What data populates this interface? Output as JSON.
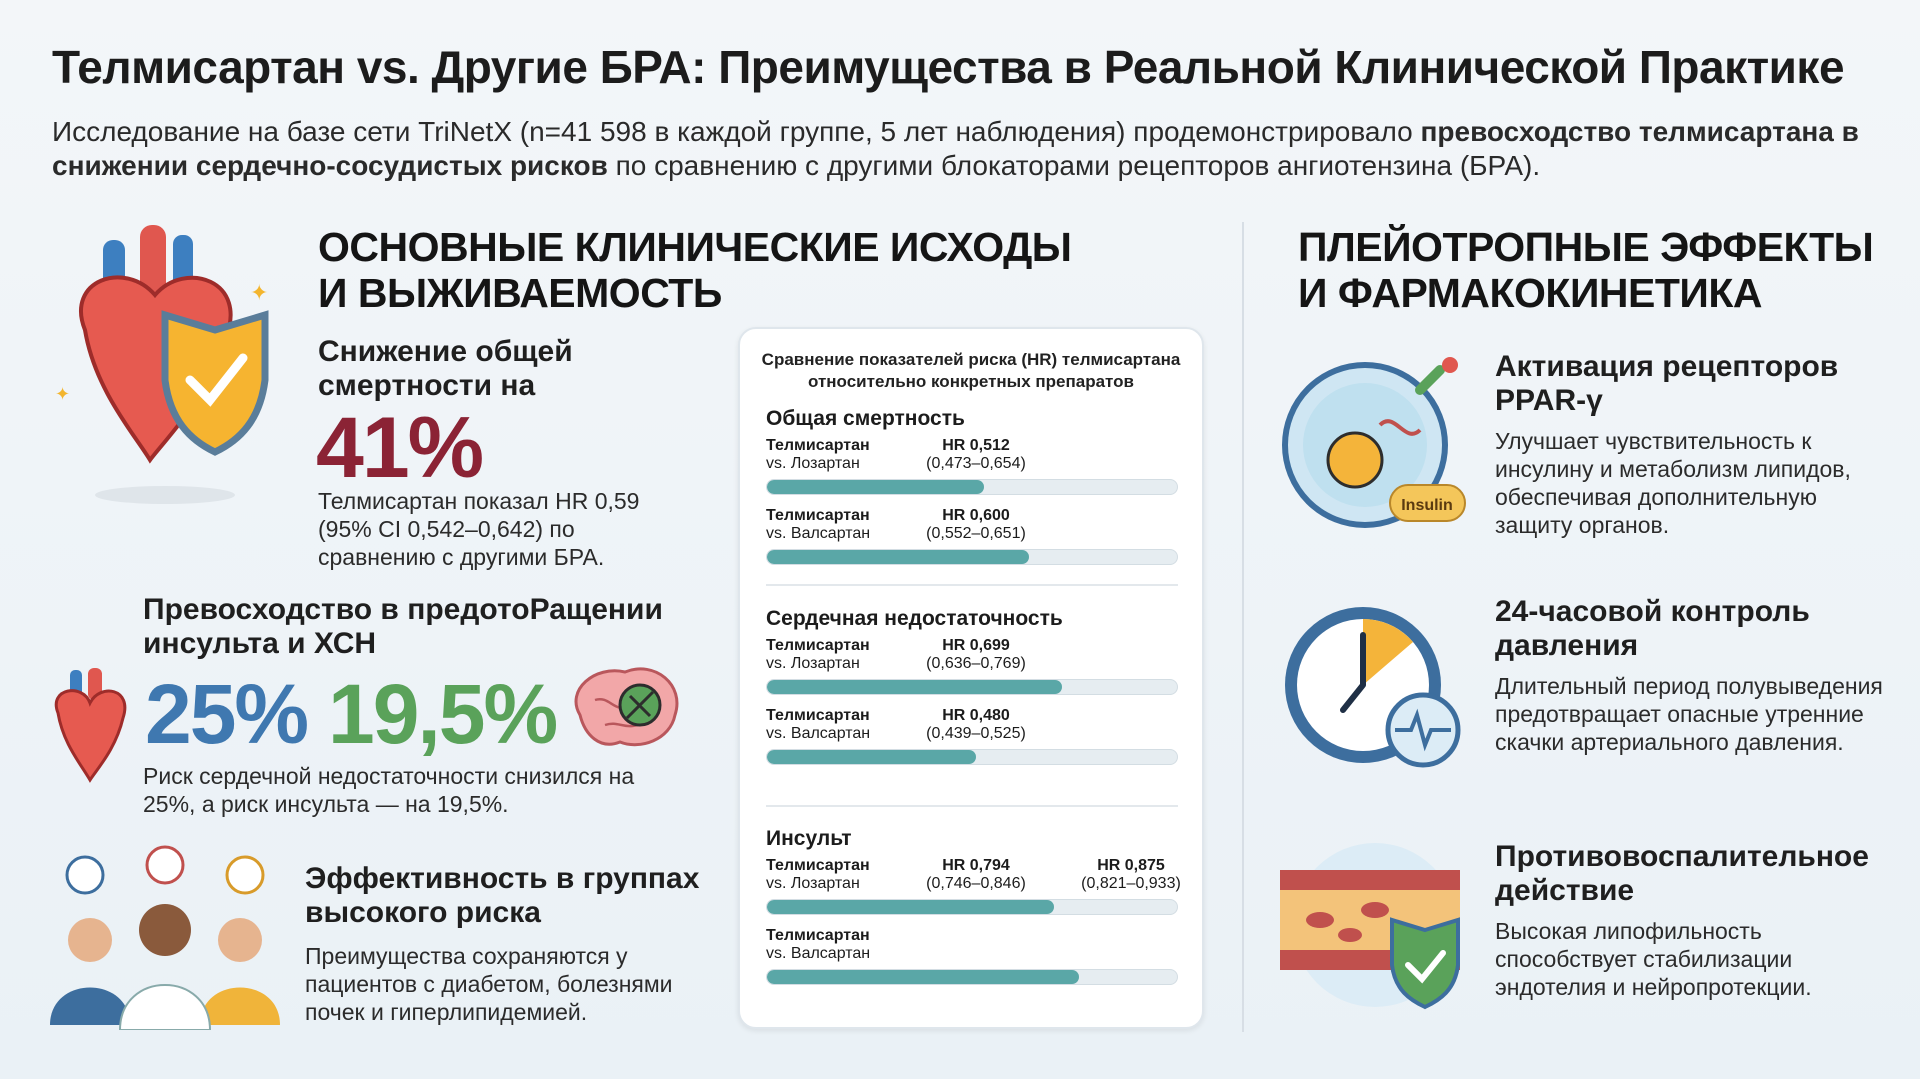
{
  "title": "Телмисартан vs. Другие БРА: Преимущества в Реальной Клинической Практике",
  "subtitle": {
    "part1": "Исследование на базе сети TriNetX (n=41 598 в каждой группе, 5 лет наблюдения) продемонстрировало ",
    "bold": "превосходство телмисартана в снижении сердечно-сосудистых рисков",
    "part2": " по сравнению с другими блокаторами рецепторов ангиотензина (БРА)."
  },
  "left": {
    "heading_line1": "ОСНОВНЫЕ КЛИНИЧЕСКИЕ ИСХОДЫ",
    "heading_line2": "И ВЫЖИВАЕМОСТЬ",
    "mortality": {
      "title_line1": "Снижение общей",
      "title_line2": "смертности на",
      "value": "41%",
      "text": "Телмисартан показал HR 0,59 (95% CI 0,542–0,642) по сравнению с другими БРА."
    },
    "stroke_hf": {
      "title": "Превосходство в предотоРащении инсульта и ХСН",
      "value_hf": "25%",
      "value_stroke": "19,5%",
      "text": "Риск сердечной недостаточности снизился на 25%, а риск инсульта — на 19,5%."
    },
    "high_risk": {
      "title": "Эффективность в группах высокого риска",
      "text": "Преимущества сохраняются у пациентов с диабетом, болезнями почек и гиперлипидемией."
    }
  },
  "chart_data": {
    "type": "bar",
    "title": "Сравнение показателей риска (HR) телмисартана относительно конкретных препаратов",
    "groups": [
      {
        "name": "Общая смертность",
        "rows": [
          {
            "drug": "Телмисартан",
            "vs": "vs. Лозартан",
            "hr": "HR 0,512",
            "ci": "(0,473–0,654)",
            "fill": 0.53
          },
          {
            "drug": "Телмисартан",
            "vs": "vs. Валсартан",
            "hr": "HR 0,600",
            "ci": "(0,552–0,651)",
            "fill": 0.64
          }
        ]
      },
      {
        "name": "Сердечная недостаточность",
        "rows": [
          {
            "drug": "Телмисартан",
            "vs": "vs. Лозартан",
            "hr": "HR 0,699",
            "ci": "(0,636–0,769)",
            "fill": 0.72
          },
          {
            "drug": "Телмисартан",
            "vs": "vs. Валсартан",
            "hr": "HR 0,480",
            "ci": "(0,439–0,525)",
            "fill": 0.51
          }
        ]
      },
      {
        "name": "Инсульт",
        "rows": [
          {
            "drug": "Телмисартан",
            "vs": "vs. Лозартан",
            "hr": "HR 0,794",
            "ci": "(0,746–0,846)",
            "hr2": "HR 0,875",
            "ci2": "(0,821–0,933)",
            "fill": 0.7
          },
          {
            "drug": "Телмисартан",
            "vs": "vs. Валсартан",
            "fill": 0.76
          }
        ]
      }
    ]
  },
  "right": {
    "heading_line1": "ПЛЕЙОТРОПНЫЕ ЭФФЕКТЫ",
    "heading_line2": "И ФАРМАКОКИНЕТИКА",
    "items": [
      {
        "title": "Активация рецепторов PPAR-γ",
        "text": "Улучшает чувствительность к инсулину и метаболизм липидов, обеспечивая дополнительную защиту органов.",
        "badge": "Insulin"
      },
      {
        "title": "24-часовой контроль давления",
        "text": "Длительный период полувыведения предотвращает опасные утренние скачки артериального давления."
      },
      {
        "title": "Противовоспалительное действие",
        "text": "Высокая липофильность способствует стабилизации эндотелия и нейропротекции."
      }
    ]
  },
  "colors": {
    "mortality": "#8b2335",
    "hf": "#3f78b0",
    "stroke": "#5aa25a",
    "bar": "#5aa7a7"
  }
}
